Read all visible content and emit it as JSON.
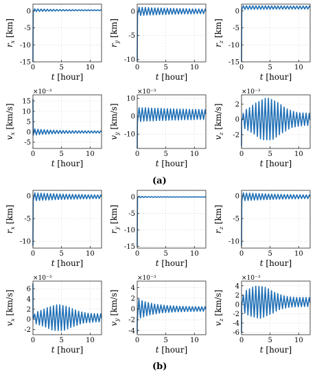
{
  "captions": {
    "a": "(a)",
    "b": "(b)"
  },
  "style": {
    "line_color": "#1f6fb5",
    "axis_color": "#222222",
    "grid_color": "#d9d9d9"
  },
  "chart_data": [
    {
      "id": "a-rx",
      "type": "line",
      "ylabel_var": "r",
      "ylabel_sub": "x",
      "ylabel_unit": "[km]",
      "xlabel_var": "t",
      "xlabel_unit": "[hour]",
      "exponent": "",
      "xlim": [
        0,
        12
      ],
      "ylim": [
        -15,
        2
      ],
      "xticks": [
        0,
        5,
        10
      ],
      "xtick_labels": [
        "0",
        "5",
        "10"
      ],
      "yticks": [
        0,
        -5,
        -10,
        -15
      ],
      "ytick_labels": [
        "0",
        "-5",
        "-10",
        "-15"
      ],
      "profile": {
        "y0": -15,
        "final": 0.2,
        "settle": 0.05,
        "amp": 0.45,
        "amp_end": 0.12,
        "decay": 0.25,
        "period": 0.55
      }
    },
    {
      "id": "a-ry",
      "type": "line",
      "ylabel_var": "r",
      "ylabel_sub": "y",
      "ylabel_unit": "[km]",
      "xlabel_var": "t",
      "xlabel_unit": "[hour]",
      "exponent": "",
      "xlim": [
        0,
        12
      ],
      "ylim": [
        -10.5,
        1.5
      ],
      "xticks": [
        0,
        5,
        10
      ],
      "xtick_labels": [
        "0",
        "5",
        "10"
      ],
      "yticks": [
        0,
        -5,
        -10
      ],
      "ytick_labels": [
        "0",
        "-5",
        "-10"
      ],
      "profile": {
        "y0": -10.5,
        "final": 0.0,
        "settle": 0.05,
        "amp": 0.9,
        "amp_end": 0.35,
        "decay": 0.12,
        "period": 0.55
      }
    },
    {
      "id": "a-rz",
      "type": "line",
      "ylabel_var": "r",
      "ylabel_sub": "z",
      "ylabel_unit": "[km]",
      "xlabel_var": "t",
      "xlabel_unit": "[hour]",
      "exponent": "",
      "xlim": [
        0,
        12
      ],
      "ylim": [
        -15,
        2
      ],
      "xticks": [
        0,
        5,
        10
      ],
      "xtick_labels": [
        "0",
        "5",
        "10"
      ],
      "yticks": [
        0,
        -5,
        -10,
        -15
      ],
      "ytick_labels": [
        "0",
        "-5",
        "-10",
        "-15"
      ],
      "profile": {
        "y0": -15,
        "final": 1.0,
        "settle": 0.05,
        "amp": 0.55,
        "amp_end": 0.4,
        "decay": 0.1,
        "period": 0.55
      }
    },
    {
      "id": "a-vx",
      "type": "line",
      "ylabel_var": "v",
      "ylabel_sub": "x",
      "ylabel_unit": "[km/s]",
      "xlabel_var": "t",
      "xlabel_unit": "[hour]",
      "exponent": "×10⁻³",
      "xlim": [
        0,
        12
      ],
      "ylim": [
        -8,
        18
      ],
      "xticks": [
        0,
        5,
        10
      ],
      "xtick_labels": [
        "0",
        "5",
        "10"
      ],
      "yticks": [
        15,
        10,
        5,
        0,
        -5
      ],
      "ytick_labels": [
        "15",
        "10",
        "5",
        "0",
        "-5"
      ],
      "profile": {
        "y0": 16,
        "final": 0.0,
        "settle": 0.05,
        "amp": 1.6,
        "amp_end": 0.5,
        "decay": 0.3,
        "period": 0.55
      }
    },
    {
      "id": "a-vy",
      "type": "line",
      "ylabel_var": "v",
      "ylabel_sub": "y",
      "ylabel_unit": "[km/s]",
      "xlabel_var": "t",
      "xlabel_unit": "[hour]",
      "exponent": "×10⁻³",
      "xlim": [
        0,
        12
      ],
      "ylim": [
        -18,
        12
      ],
      "xticks": [
        0,
        5,
        10
      ],
      "xtick_labels": [
        "0",
        "5",
        "10"
      ],
      "yticks": [
        10,
        0,
        -10
      ],
      "ytick_labels": [
        "10",
        "0",
        "-10"
      ],
      "profile": {
        "y0": -18,
        "final": 1.0,
        "settle": 0.05,
        "amp": 4.0,
        "amp_end": 2.0,
        "decay": 0.08,
        "period": 0.55
      }
    },
    {
      "id": "a-vz",
      "type": "line",
      "ylabel_var": "v",
      "ylabel_sub": "z",
      "ylabel_unit": "[km/s]",
      "xlabel_var": "t",
      "xlabel_unit": "[hour]",
      "exponent": "×10⁻³",
      "xlim": [
        0,
        12
      ],
      "ylim": [
        -3.8,
        3.2
      ],
      "xticks": [
        0,
        5,
        10
      ],
      "xtick_labels": [
        "0",
        "5",
        "10"
      ],
      "yticks": [
        2,
        0,
        -2
      ],
      "ytick_labels": [
        "2",
        "0",
        "-2"
      ],
      "profile": {
        "y0": -3.5,
        "final": 0.0,
        "settle": 0.02,
        "amp": 2.8,
        "amp_end": 0.8,
        "envelope": "bell",
        "peak_t": 4.5,
        "period": 0.55
      }
    },
    {
      "id": "b-rx",
      "type": "line",
      "ylabel_var": "r",
      "ylabel_sub": "x",
      "ylabel_unit": "[km]",
      "xlabel_var": "t",
      "xlabel_unit": "[hour]",
      "exponent": "",
      "xlim": [
        0,
        12
      ],
      "ylim": [
        -11.5,
        1.2
      ],
      "xticks": [
        0,
        5,
        10
      ],
      "xtick_labels": [
        "0",
        "5",
        "10"
      ],
      "yticks": [
        0,
        -5,
        -10
      ],
      "ytick_labels": [
        "0",
        "-5",
        "-10"
      ],
      "profile": {
        "y0": -11,
        "final": -0.2,
        "settle": 0.05,
        "amp": 0.9,
        "amp_end": 0.25,
        "decay": 0.12,
        "period": 0.55
      }
    },
    {
      "id": "b-ry",
      "type": "line",
      "ylabel_var": "r",
      "ylabel_sub": "y",
      "ylabel_unit": "[km]",
      "xlabel_var": "t",
      "xlabel_unit": "[hour]",
      "exponent": "",
      "xlim": [
        0,
        12
      ],
      "ylim": [
        -15.5,
        2
      ],
      "xticks": [
        0,
        5,
        10
      ],
      "xtick_labels": [
        "0",
        "5",
        "10"
      ],
      "yticks": [
        0,
        -5,
        -10,
        -15
      ],
      "ytick_labels": [
        "0",
        "-5",
        "-10",
        "-15"
      ],
      "profile": {
        "y0": -15,
        "final": 0.0,
        "settle": 0.05,
        "amp": 0.25,
        "amp_end": 0.05,
        "decay": 0.4,
        "period": 0.55
      }
    },
    {
      "id": "b-rz",
      "type": "line",
      "ylabel_var": "r",
      "ylabel_sub": "z",
      "ylabel_unit": "[km]",
      "xlabel_var": "t",
      "xlabel_unit": "[hour]",
      "exponent": "",
      "xlim": [
        0,
        12
      ],
      "ylim": [
        -11.5,
        1.2
      ],
      "xticks": [
        0,
        5,
        10
      ],
      "xtick_labels": [
        "0",
        "5",
        "10"
      ],
      "yticks": [
        0,
        -5,
        -10
      ],
      "ytick_labels": [
        "0",
        "-5",
        "-10"
      ],
      "profile": {
        "y0": -11,
        "final": -0.2,
        "settle": 0.05,
        "amp": 0.9,
        "amp_end": 0.25,
        "decay": 0.12,
        "period": 0.55
      }
    },
    {
      "id": "b-vx",
      "type": "line",
      "ylabel_var": "v",
      "ylabel_sub": "x",
      "ylabel_unit": "[km/s]",
      "xlabel_var": "t",
      "xlabel_unit": "[hour]",
      "exponent": "×10⁻³",
      "xlim": [
        0,
        12
      ],
      "ylim": [
        -3,
        7.5
      ],
      "xticks": [
        0,
        5,
        10
      ],
      "xtick_labels": [
        "0",
        "5",
        "10"
      ],
      "yticks": [
        6,
        4,
        2,
        0,
        -2
      ],
      "ytick_labels": [
        "6",
        "4",
        "2",
        "0",
        "-2"
      ],
      "profile": {
        "y0": 7,
        "final": 0.3,
        "settle": 0.02,
        "amp": 2.6,
        "amp_end": 0.8,
        "envelope": "bell",
        "peak_t": 4.5,
        "period": 0.55
      }
    },
    {
      "id": "b-vy",
      "type": "line",
      "ylabel_var": "v",
      "ylabel_sub": "y",
      "ylabel_unit": "[km/s]",
      "xlabel_var": "t",
      "xlabel_unit": "[hour]",
      "exponent": "×10⁻³",
      "xlim": [
        0,
        12
      ],
      "ylim": [
        -4.8,
        5.2
      ],
      "xticks": [
        0,
        5,
        10
      ],
      "xtick_labels": [
        "0",
        "5",
        "10"
      ],
      "yticks": [
        4,
        2,
        0,
        -2,
        -4
      ],
      "ytick_labels": [
        "4",
        "2",
        "0",
        "-2",
        "-4"
      ],
      "profile": {
        "y0": -4.5,
        "final": 0.0,
        "settle": 0.02,
        "amp": 2.0,
        "amp_end": 0.4,
        "decay": 0.35,
        "period": 0.55
      }
    },
    {
      "id": "b-vz",
      "type": "line",
      "ylabel_var": "v",
      "ylabel_sub": "z",
      "ylabel_unit": "[km/s]",
      "xlabel_var": "t",
      "xlabel_unit": "[hour]",
      "exponent": "×10⁻³",
      "xlim": [
        0,
        12
      ],
      "ylim": [
        -6.5,
        5
      ],
      "xticks": [
        0,
        5,
        10
      ],
      "xtick_labels": [
        "0",
        "5",
        "10"
      ],
      "yticks": [
        4,
        2,
        0,
        -2,
        -4,
        -6
      ],
      "ytick_labels": [
        "4",
        "2",
        "0",
        "-2",
        "-4",
        "-6"
      ],
      "profile": {
        "y0": -6,
        "final": 0.5,
        "settle": 0.02,
        "amp": 3.5,
        "amp_end": 1.0,
        "envelope": "bell",
        "peak_t": 3.0,
        "period": 0.55
      }
    }
  ]
}
